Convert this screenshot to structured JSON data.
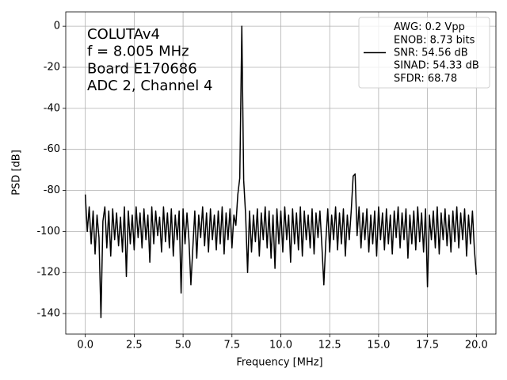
{
  "chart_data": {
    "type": "line",
    "xlabel": "Frequency [MHz]",
    "ylabel": "PSD [dB]",
    "annotations": [
      "COLUTAv4",
      "f = 8.005 MHz",
      "Board E170686",
      "ADC 2, Channel 4"
    ],
    "xlim": [
      -1.0,
      21.0
    ],
    "ylim": [
      -150,
      7
    ],
    "xticks": [
      {
        "value": 0,
        "label": "0.0"
      },
      2.5,
      {
        "value": 5,
        "label": "5.0"
      },
      7.5,
      {
        "value": 10,
        "label": "10.0"
      },
      12.5,
      {
        "value": 15,
        "label": "15.0"
      },
      17.5,
      {
        "value": 20,
        "label": "20.0"
      }
    ],
    "yticks": [
      0,
      -20,
      -40,
      -60,
      -80,
      -100,
      -120,
      -140
    ],
    "grid": true,
    "legend": "upper right",
    "x": [
      0.0,
      0.1,
      0.2,
      0.3,
      0.4,
      0.5,
      0.6,
      0.7,
      0.8,
      0.9,
      1.0,
      1.1,
      1.2,
      1.3,
      1.4,
      1.5,
      1.6,
      1.7,
      1.8,
      1.9,
      2.0,
      2.1,
      2.2,
      2.3,
      2.4,
      2.5,
      2.6,
      2.7,
      2.8,
      2.9,
      3.0,
      3.1,
      3.2,
      3.3,
      3.4,
      3.5,
      3.6,
      3.7,
      3.8,
      3.9,
      4.0,
      4.1,
      4.2,
      4.3,
      4.4,
      4.5,
      4.6,
      4.7,
      4.8,
      4.9,
      5.0,
      5.1,
      5.2,
      5.3,
      5.4,
      5.5,
      5.6,
      5.7,
      5.8,
      5.9,
      6.0,
      6.1,
      6.2,
      6.3,
      6.4,
      6.5,
      6.6,
      6.7,
      6.8,
      6.9,
      7.0,
      7.1,
      7.2,
      7.3,
      7.4,
      7.5,
      7.6,
      7.7,
      7.8,
      7.9,
      8.005,
      8.1,
      8.2,
      8.3,
      8.4,
      8.5,
      8.6,
      8.7,
      8.8,
      8.9,
      9.0,
      9.1,
      9.2,
      9.3,
      9.4,
      9.5,
      9.6,
      9.7,
      9.8,
      9.9,
      10.0,
      10.1,
      10.2,
      10.3,
      10.4,
      10.5,
      10.6,
      10.7,
      10.8,
      10.9,
      11.0,
      11.1,
      11.2,
      11.3,
      11.4,
      11.5,
      11.6,
      11.7,
      11.8,
      11.9,
      12.0,
      12.1,
      12.2,
      12.3,
      12.4,
      12.5,
      12.6,
      12.7,
      12.8,
      12.9,
      13.0,
      13.1,
      13.2,
      13.3,
      13.4,
      13.5,
      13.6,
      13.7,
      13.8,
      13.9,
      14.0,
      14.1,
      14.2,
      14.3,
      14.4,
      14.5,
      14.6,
      14.7,
      14.8,
      14.9,
      15.0,
      15.1,
      15.2,
      15.3,
      15.4,
      15.5,
      15.6,
      15.7,
      15.8,
      15.9,
      16.0,
      16.1,
      16.2,
      16.3,
      16.4,
      16.5,
      16.6,
      16.7,
      16.8,
      16.9,
      17.0,
      17.1,
      17.2,
      17.3,
      17.4,
      17.5,
      17.6,
      17.7,
      17.8,
      17.9,
      18.0,
      18.1,
      18.2,
      18.3,
      18.4,
      18.5,
      18.6,
      18.7,
      18.8,
      18.9,
      19.0,
      19.1,
      19.2,
      19.3,
      19.4,
      19.5,
      19.6,
      19.7,
      19.8,
      19.9,
      20.0
    ],
    "series": [
      {
        "name": "AWG: 0.2 Vpp\nENOB: 8.73 bits\nSNR: 54.56 dB\nSINAD: 54.33 dB\nSFDR: 68.78",
        "color": "#000000",
        "values": [
          -82,
          -100,
          -88,
          -106,
          -90,
          -111,
          -92,
          -103,
          -142,
          -95,
          -88,
          -108,
          -90,
          -112,
          -89,
          -104,
          -91,
          -107,
          -93,
          -110,
          -88,
          -122,
          -90,
          -106,
          -92,
          -109,
          -88,
          -103,
          -91,
          -108,
          -89,
          -104,
          -92,
          -115,
          -88,
          -106,
          -90,
          -102,
          -93,
          -110,
          -88,
          -105,
          -91,
          -108,
          -89,
          -112,
          -92,
          -104,
          -90,
          -130,
          -89,
          -106,
          -91,
          -104,
          -126,
          -108,
          -90,
          -113,
          -92,
          -103,
          -88,
          -107,
          -91,
          -110,
          -89,
          -104,
          -92,
          -109,
          -90,
          -106,
          -88,
          -111,
          -91,
          -104,
          -89,
          -108,
          -92,
          -97,
          -82,
          -74,
          0,
          -75,
          -92,
          -120,
          -90,
          -110,
          -92,
          -105,
          -89,
          -112,
          -91,
          -104,
          -88,
          -108,
          -90,
          -113,
          -92,
          -118,
          -89,
          -106,
          -90,
          -110,
          -88,
          -104,
          -92,
          -115,
          -89,
          -106,
          -91,
          -109,
          -88,
          -112,
          -90,
          -104,
          -92,
          -108,
          -89,
          -111,
          -91,
          -103,
          -90,
          -107,
          -126,
          -105,
          -89,
          -110,
          -92,
          -104,
          -88,
          -109,
          -91,
          -106,
          -89,
          -112,
          -92,
          -104,
          -90,
          -73,
          -72,
          -102,
          -88,
          -108,
          -91,
          -104,
          -89,
          -110,
          -92,
          -106,
          -90,
          -112,
          -88,
          -104,
          -91,
          -109,
          -89,
          -106,
          -92,
          -111,
          -90,
          -103,
          -88,
          -108,
          -91,
          -104,
          -89,
          -113,
          -92,
          -106,
          -90,
          -109,
          -88,
          -105,
          -91,
          -110,
          -89,
          -127,
          -92,
          -104,
          -90,
          -108,
          -88,
          -111,
          -91,
          -104,
          -89,
          -107,
          -92,
          -110,
          -90,
          -105,
          -88,
          -108,
          -91,
          -104,
          -89,
          -112,
          -92,
          -106,
          -90,
          -109,
          -121
        ]
      }
    ]
  }
}
